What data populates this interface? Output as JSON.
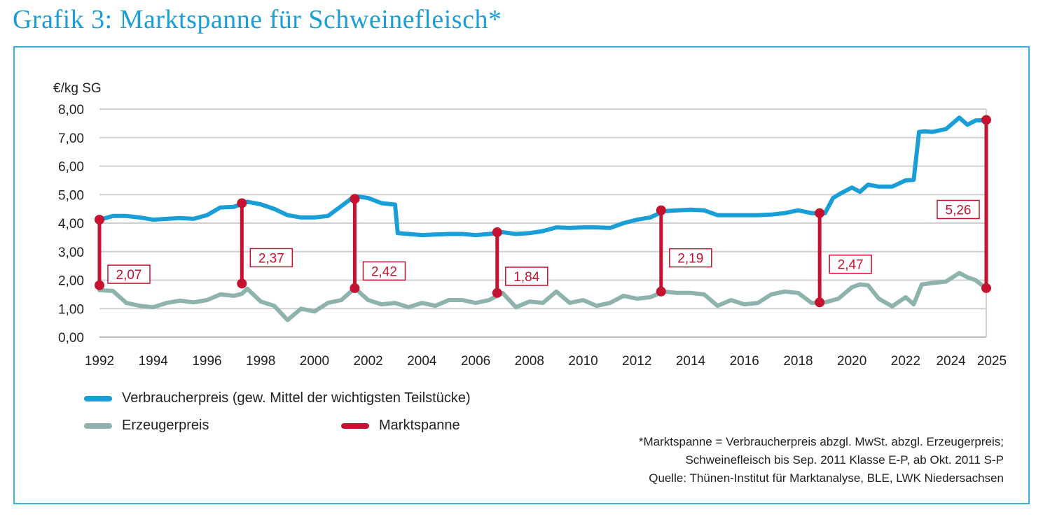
{
  "title": "Grafik 3: Marktspanne für Schweinefleisch*",
  "legend": {
    "consumer": "Verbraucherpreis (gew. Mittel der wichtigsten Teilstücke)",
    "producer": "Erzeugerpreis",
    "margin": "Marktspanne"
  },
  "notes": {
    "line1": "*Marktspanne = Verbraucherpreis abzgl. MwSt. abzgl. Erzeugerpreis;",
    "line2": "Schweinefleisch bis Sep. 2011 Klasse E-P, ab Okt. 2011 S-P",
    "line3": "Quelle: Thünen-Institut für Marktanalyse, BLE, LWK Niedersachsen"
  },
  "colors": {
    "consumer": "#1a9ed8",
    "producer": "#8eb3ad",
    "margin": "#c41230",
    "grid": "#d0d0d0"
  },
  "chart_data": {
    "type": "line",
    "title": "Grafik 3: Marktspanne für Schweinefleisch*",
    "ylabel": "€/kg SG",
    "xlabel": "",
    "xlim": [
      1992,
      2025
    ],
    "ylim": [
      0,
      8
    ],
    "y_ticks": [
      "0,00",
      "1,00",
      "2,00",
      "3,00",
      "4,00",
      "5,00",
      "6,00",
      "7,00",
      "8,00"
    ],
    "x_ticks": [
      "1992",
      "1994",
      "1996",
      "1998",
      "2000",
      "2002",
      "2004",
      "2006",
      "2008",
      "2010",
      "2012",
      "2014",
      "2016",
      "2018",
      "2020",
      "2022",
      "2024",
      "2025"
    ],
    "series": [
      {
        "name": "Verbraucherpreis (gew. Mittel der wichtigsten Teilstücke)",
        "x": [
          1992,
          1992.5,
          1993,
          1993.5,
          1994,
          1994.5,
          1995,
          1995.5,
          1996,
          1996.5,
          1997,
          1997.5,
          1998,
          1998.5,
          1999,
          1999.5,
          2000,
          2000.5,
          2001,
          2001.5,
          2002,
          2002.5,
          2003,
          2003.1,
          2003.5,
          2004,
          2004.5,
          2005,
          2005.5,
          2006,
          2006.5,
          2007,
          2007.5,
          2008,
          2008.5,
          2009,
          2009.5,
          2010,
          2010.5,
          2011,
          2011.5,
          2012,
          2012.5,
          2013,
          2013.5,
          2014,
          2014.5,
          2015,
          2015.5,
          2016,
          2016.5,
          2017,
          2017.5,
          2018,
          2018.5,
          2019,
          2019.3,
          2019.6,
          2020,
          2020.3,
          2020.6,
          2021,
          2021.5,
          2022,
          2022.3,
          2022.5,
          2022.7,
          2023,
          2023.5,
          2024,
          2024.3,
          2024.6,
          2025
        ],
        "values": [
          4.12,
          4.25,
          4.25,
          4.2,
          4.12,
          4.15,
          4.18,
          4.15,
          4.28,
          4.55,
          4.57,
          4.75,
          4.66,
          4.5,
          4.28,
          4.2,
          4.2,
          4.25,
          4.6,
          4.95,
          4.88,
          4.7,
          4.65,
          3.65,
          3.62,
          3.58,
          3.6,
          3.62,
          3.62,
          3.58,
          3.62,
          3.68,
          3.62,
          3.65,
          3.72,
          3.85,
          3.83,
          3.85,
          3.85,
          3.83,
          4.0,
          4.12,
          4.2,
          4.42,
          4.45,
          4.47,
          4.45,
          4.28,
          4.28,
          4.28,
          4.28,
          4.3,
          4.35,
          4.45,
          4.35,
          4.35,
          4.88,
          5.05,
          5.25,
          5.1,
          5.35,
          5.28,
          5.28,
          5.5,
          5.52,
          7.2,
          7.22,
          7.2,
          7.3,
          7.7,
          7.45,
          7.6,
          7.62
        ]
      },
      {
        "name": "Erzeugerpreis",
        "x": [
          1992,
          1992.5,
          1993,
          1993.5,
          1994,
          1994.5,
          1995,
          1995.5,
          1996,
          1996.5,
          1997,
          1997.3,
          1997.5,
          1998,
          1998.5,
          1999,
          1999.5,
          2000,
          2000.5,
          2001,
          2001.5,
          2002,
          2002.5,
          2003,
          2003.5,
          2004,
          2004.5,
          2005,
          2005.5,
          2006,
          2006.5,
          2007,
          2007.5,
          2008,
          2008.5,
          2009,
          2009.5,
          2010,
          2010.5,
          2011,
          2011.5,
          2012,
          2012.5,
          2013,
          2013.5,
          2014,
          2014.5,
          2015,
          2015.5,
          2016,
          2016.5,
          2017,
          2017.5,
          2018,
          2018.5,
          2019,
          2019.5,
          2020,
          2020.3,
          2020.6,
          2021,
          2021.5,
          2022,
          2022.3,
          2022.6,
          2023,
          2023.5,
          2024,
          2024.3,
          2024.6,
          2025
        ],
        "values": [
          1.65,
          1.62,
          1.2,
          1.1,
          1.05,
          1.2,
          1.28,
          1.22,
          1.3,
          1.5,
          1.45,
          1.52,
          1.7,
          1.25,
          1.1,
          0.6,
          1.0,
          0.9,
          1.2,
          1.3,
          1.72,
          1.3,
          1.15,
          1.2,
          1.05,
          1.2,
          1.1,
          1.3,
          1.3,
          1.2,
          1.3,
          1.55,
          1.05,
          1.25,
          1.2,
          1.6,
          1.2,
          1.3,
          1.1,
          1.2,
          1.45,
          1.35,
          1.4,
          1.6,
          1.55,
          1.55,
          1.5,
          1.1,
          1.3,
          1.15,
          1.2,
          1.5,
          1.6,
          1.55,
          1.2,
          1.22,
          1.35,
          1.75,
          1.85,
          1.82,
          1.35,
          1.08,
          1.4,
          1.15,
          1.85,
          1.9,
          1.95,
          2.25,
          2.1,
          2.0,
          1.7
        ]
      }
    ],
    "margins": [
      {
        "x": 1992.0,
        "top": 4.12,
        "bottom": 1.82,
        "label": "2,07"
      },
      {
        "x": 1997.3,
        "top": 4.7,
        "bottom": 1.88,
        "label": "2,37"
      },
      {
        "x": 2001.5,
        "top": 4.85,
        "bottom": 1.72,
        "label": "2,42"
      },
      {
        "x": 2006.8,
        "top": 3.68,
        "bottom": 1.55,
        "label": "1,84"
      },
      {
        "x": 2012.9,
        "top": 4.45,
        "bottom": 1.6,
        "label": "2,19"
      },
      {
        "x": 2018.8,
        "top": 4.35,
        "bottom": 1.22,
        "label": "2,47"
      },
      {
        "x": 2025.0,
        "top": 7.62,
        "bottom": 1.72,
        "label": "5,26"
      }
    ]
  }
}
